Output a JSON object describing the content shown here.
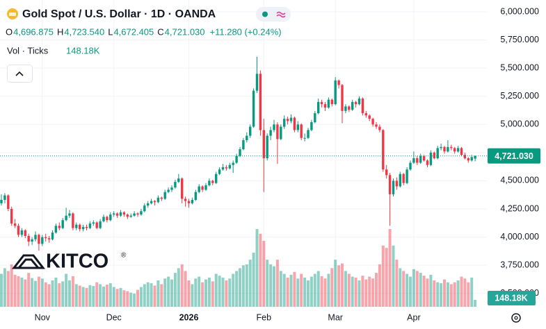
{
  "header": {
    "title": "Gold Spot / U.S. Dollar · 1D · OANDA",
    "ohlc": [
      {
        "key": "O",
        "value": "4,696.875"
      },
      {
        "key": "H",
        "value": "4,723.540"
      },
      {
        "key": "L",
        "value": "4,672.405"
      },
      {
        "key": "C",
        "value": "4,721.030"
      }
    ],
    "change": "+11.280 (+0.24%)",
    "volume_title": "Vol · Ticks"
  },
  "chart_data": {
    "type": "candlestick",
    "categories": [
      null,
      null,
      null,
      null,
      null,
      null,
      null,
      null,
      null,
      null,
      null,
      null,
      "Nov",
      null,
      null,
      null,
      null,
      null,
      null,
      null,
      null,
      null,
      null,
      null,
      null,
      null,
      null,
      null,
      null,
      null,
      null,
      null,
      null,
      "Dec",
      null,
      null,
      null,
      null,
      null,
      null,
      null,
      null,
      null,
      null,
      null,
      null,
      null,
      null,
      null,
      null,
      null,
      null,
      null,
      null,
      null,
      "2026",
      null,
      null,
      null,
      null,
      null,
      null,
      null,
      null,
      null,
      null,
      null,
      null,
      null,
      null,
      null,
      null,
      null,
      null,
      null,
      null,
      null,
      "Feb",
      null,
      null,
      null,
      null,
      null,
      null,
      null,
      null,
      null,
      null,
      null,
      null,
      null,
      null,
      null,
      null,
      null,
      null,
      null,
      null,
      "Mar",
      null,
      null,
      null,
      null,
      null,
      null,
      null,
      null,
      null,
      null,
      null,
      null,
      null,
      null,
      null,
      null,
      null,
      null,
      null,
      null,
      null,
      null,
      "Apr",
      null,
      null,
      null,
      null,
      null,
      null,
      null,
      null,
      null,
      null,
      null,
      null,
      null,
      null,
      null,
      null,
      null,
      null
    ],
    "candles": [
      [
        4300,
        4380,
        4280,
        4330
      ],
      [
        4330,
        4390,
        4300,
        4370
      ],
      [
        4370,
        4380,
        4230,
        4250
      ],
      [
        4250,
        4270,
        4100,
        4120
      ],
      [
        4120,
        4160,
        4080,
        4100
      ],
      [
        4100,
        4120,
        4000,
        4020
      ],
      [
        4020,
        4080,
        4000,
        4060
      ],
      [
        4060,
        4070,
        3990,
        4010
      ],
      [
        4010,
        4030,
        3920,
        3960
      ],
      [
        3960,
        4000,
        3930,
        3980
      ],
      [
        3980,
        4050,
        3960,
        4020
      ],
      [
        4020,
        4030,
        3880,
        3940
      ],
      [
        3940,
        4020,
        3920,
        4000
      ],
      [
        4000,
        4030,
        3960,
        3990
      ],
      [
        3990,
        4010,
        3950,
        3980
      ],
      [
        3980,
        4060,
        3970,
        4040
      ],
      [
        4040,
        4120,
        4030,
        4100
      ],
      [
        4100,
        4130,
        4060,
        4080
      ],
      [
        4080,
        4170,
        4070,
        4150
      ],
      [
        4150,
        4260,
        4140,
        4190
      ],
      [
        4190,
        4240,
        4170,
        4210
      ],
      [
        4210,
        4220,
        4060,
        4080
      ],
      [
        4080,
        4130,
        4060,
        4110
      ],
      [
        4110,
        4120,
        4050,
        4070
      ],
      [
        4070,
        4110,
        4050,
        4090
      ],
      [
        4090,
        4110,
        4060,
        4080
      ],
      [
        4080,
        4140,
        4070,
        4120
      ],
      [
        4120,
        4150,
        4100,
        4130
      ],
      [
        4130,
        4140,
        4070,
        4080
      ],
      [
        4080,
        4160,
        4070,
        4140
      ],
      [
        4140,
        4200,
        4130,
        4180
      ],
      [
        4180,
        4190,
        4130,
        4150
      ],
      [
        4150,
        4220,
        4140,
        4200
      ],
      [
        4200,
        4230,
        4180,
        4210
      ],
      [
        4210,
        4220,
        4170,
        4190
      ],
      [
        4190,
        4240,
        4180,
        4220
      ],
      [
        4220,
        4230,
        4180,
        4200
      ],
      [
        4200,
        4210,
        4160,
        4180
      ],
      [
        4180,
        4210,
        4170,
        4190
      ],
      [
        4190,
        4230,
        4180,
        4210
      ],
      [
        4210,
        4220,
        4180,
        4200
      ],
      [
        4200,
        4250,
        4190,
        4230
      ],
      [
        4230,
        4300,
        4220,
        4280
      ],
      [
        4280,
        4320,
        4260,
        4300
      ],
      [
        4300,
        4340,
        4290,
        4320
      ],
      [
        4320,
        4330,
        4280,
        4310
      ],
      [
        4310,
        4370,
        4300,
        4350
      ],
      [
        4350,
        4360,
        4320,
        4340
      ],
      [
        4340,
        4420,
        4330,
        4400
      ],
      [
        4400,
        4440,
        4390,
        4420
      ],
      [
        4420,
        4460,
        4400,
        4440
      ],
      [
        4440,
        4510,
        4430,
        4490
      ],
      [
        4490,
        4560,
        4480,
        4520
      ],
      [
        4520,
        4530,
        4300,
        4340
      ],
      [
        4340,
        4360,
        4270,
        4320
      ],
      [
        4320,
        4340,
        4260,
        4300
      ],
      [
        4300,
        4350,
        4290,
        4330
      ],
      [
        4330,
        4420,
        4320,
        4400
      ],
      [
        4400,
        4470,
        4390,
        4450
      ],
      [
        4450,
        4460,
        4400,
        4420
      ],
      [
        4420,
        4480,
        4410,
        4460
      ],
      [
        4460,
        4520,
        4450,
        4500
      ],
      [
        4500,
        4510,
        4460,
        4480
      ],
      [
        4480,
        4580,
        4470,
        4560
      ],
      [
        4560,
        4620,
        4550,
        4600
      ],
      [
        4600,
        4650,
        4590,
        4620
      ],
      [
        4620,
        4640,
        4590,
        4610
      ],
      [
        4610,
        4660,
        4600,
        4640
      ],
      [
        4640,
        4680,
        4570,
        4660
      ],
      [
        4660,
        4740,
        4650,
        4720
      ],
      [
        4720,
        4800,
        4710,
        4780
      ],
      [
        4780,
        4880,
        4770,
        4860
      ],
      [
        4860,
        4930,
        4840,
        4900
      ],
      [
        4900,
        5000,
        4880,
        4980
      ],
      [
        4980,
        5320,
        4970,
        5300
      ],
      [
        5300,
        5600,
        5280,
        5450
      ],
      [
        5450,
        5480,
        4900,
        4950
      ],
      [
        4950,
        5050,
        4400,
        4700
      ],
      [
        4700,
        4920,
        4680,
        4900
      ],
      [
        4900,
        4980,
        4860,
        4950
      ],
      [
        4950,
        5040,
        4930,
        5000
      ],
      [
        5000,
        5020,
        4650,
        4870
      ],
      [
        4870,
        5000,
        4860,
        4980
      ],
      [
        4980,
        5080,
        4960,
        5050
      ],
      [
        5050,
        5070,
        5000,
        5030
      ],
      [
        5030,
        5090,
        5010,
        5060
      ],
      [
        5060,
        5070,
        4930,
        4950
      ],
      [
        4950,
        5030,
        4930,
        5000
      ],
      [
        5000,
        5010,
        4860,
        4880
      ],
      [
        4880,
        4920,
        4850,
        4880
      ],
      [
        4880,
        4970,
        4870,
        4950
      ],
      [
        4950,
        5040,
        4940,
        5020
      ],
      [
        5020,
        5120,
        5010,
        5100
      ],
      [
        5100,
        5230,
        5090,
        5200
      ],
      [
        5200,
        5220,
        5150,
        5180
      ],
      [
        5180,
        5200,
        5120,
        5150
      ],
      [
        5150,
        5240,
        5140,
        5220
      ],
      [
        5220,
        5230,
        5160,
        5180
      ],
      [
        5180,
        5420,
        5170,
        5390
      ],
      [
        5390,
        5400,
        5320,
        5350
      ],
      [
        5350,
        5360,
        5010,
        5120
      ],
      [
        5120,
        5180,
        5100,
        5160
      ],
      [
        5160,
        5170,
        5110,
        5130
      ],
      [
        5130,
        5220,
        5120,
        5200
      ],
      [
        5200,
        5210,
        5150,
        5180
      ],
      [
        5180,
        5250,
        5170,
        5230
      ],
      [
        5230,
        5240,
        5080,
        5100
      ],
      [
        5100,
        5120,
        5060,
        5080
      ],
      [
        5080,
        5090,
        5030,
        5050
      ],
      [
        5050,
        5060,
        4980,
        5000
      ],
      [
        5000,
        5020,
        4960,
        4980
      ],
      [
        4980,
        5000,
        4930,
        4950
      ],
      [
        4950,
        4960,
        4580,
        4600
      ],
      [
        4600,
        4640,
        4520,
        4550
      ],
      [
        4550,
        4570,
        4100,
        4380
      ],
      [
        4380,
        4520,
        4360,
        4500
      ],
      [
        4500,
        4530,
        4420,
        4450
      ],
      [
        4450,
        4580,
        4440,
        4560
      ],
      [
        4560,
        4570,
        4460,
        4480
      ],
      [
        4480,
        4620,
        4470,
        4600
      ],
      [
        4600,
        4680,
        4590,
        4660
      ],
      [
        4660,
        4760,
        4650,
        4700
      ],
      [
        4700,
        4720,
        4640,
        4660
      ],
      [
        4660,
        4740,
        4650,
        4720
      ],
      [
        4720,
        4730,
        4670,
        4680
      ],
      [
        4680,
        4690,
        4620,
        4640
      ],
      [
        4640,
        4770,
        4630,
        4750
      ],
      [
        4750,
        4760,
        4690,
        4700
      ],
      [
        4700,
        4810,
        4690,
        4790
      ],
      [
        4790,
        4830,
        4770,
        4800
      ],
      [
        4800,
        4810,
        4740,
        4760
      ],
      [
        4760,
        4860,
        4750,
        4800
      ],
      [
        4800,
        4820,
        4770,
        4790
      ],
      [
        4790,
        4800,
        4740,
        4760
      ],
      [
        4760,
        4810,
        4750,
        4790
      ],
      [
        4790,
        4800,
        4720,
        4730
      ],
      [
        4730,
        4750,
        4690,
        4700
      ],
      [
        4700,
        4710,
        4660,
        4680
      ],
      [
        4680,
        4730,
        4670,
        4709.75
      ],
      [
        4696.875,
        4723.54,
        4672.405,
        4721.03
      ]
    ],
    "volume": [
      700000,
      820000,
      760000,
      900000,
      680000,
      650000,
      620000,
      580000,
      720000,
      610000,
      550000,
      640000,
      600000,
      520000,
      480000,
      560000,
      620000,
      500000,
      540000,
      700000,
      560000,
      650000,
      480000,
      450000,
      420000,
      400000,
      460000,
      440000,
      520000,
      480000,
      430000,
      470000,
      500000,
      420000,
      380000,
      400000,
      350000,
      330000,
      300000,
      280000,
      360000,
      420000,
      480000,
      520000,
      500000,
      450000,
      560000,
      480000,
      600000,
      640000,
      580000,
      720000,
      820000,
      900000,
      760000,
      560000,
      480000,
      600000,
      640000,
      520000,
      580000,
      620000,
      540000,
      700000,
      660000,
      620000,
      560000,
      600000,
      700000,
      760000,
      820000,
      880000,
      900000,
      1000000,
      1150000,
      1650000,
      1550000,
      1400000,
      1000000,
      900000,
      860000,
      1000000,
      760000,
      700000,
      620000,
      680000,
      740000,
      600000,
      700000,
      620000,
      560000,
      640000,
      700000,
      760000,
      650000,
      600000,
      700000,
      820000,
      1000000,
      880000,
      920000,
      760000,
      700000,
      640000,
      620000,
      560000,
      660000,
      580000,
      640000,
      600000,
      720000,
      900000,
      1300000,
      1250000,
      1650000,
      1300000,
      1000000,
      820000,
      760000,
      700000,
      640000,
      800000,
      760000,
      720000,
      660000,
      600000,
      680000,
      560000,
      520000,
      500000,
      580000,
      520000,
      480000,
      520000,
      560000,
      640000,
      600000,
      520000,
      620000,
      148180
    ],
    "ylim": [
      3381,
      6105
    ],
    "yticks": [
      {
        "value": 3500,
        "label": "3,500.000"
      },
      {
        "value": 3750,
        "label": "3,750.000"
      },
      {
        "value": 4000,
        "label": "4,000.000"
      },
      {
        "value": 4250,
        "label": "4,250.000"
      },
      {
        "value": 4500,
        "label": "4,500.000"
      },
      {
        "value": 4750,
        "label": "4,750.000"
      },
      {
        "value": 5000,
        "label": "5,000.000"
      },
      {
        "value": 5250,
        "label": "5,250.000"
      },
      {
        "value": 5500,
        "label": "5,500.000"
      },
      {
        "value": 5750,
        "label": "5,750.000"
      },
      {
        "value": 6000,
        "label": "6,000.000"
      }
    ],
    "grid": true,
    "up_color": "#089981",
    "down_color": "#f23645",
    "last_price_label": "4,721.030",
    "last_volume_label": "148.18K",
    "watermark": "KITCO",
    "watermark_sign": "®"
  }
}
